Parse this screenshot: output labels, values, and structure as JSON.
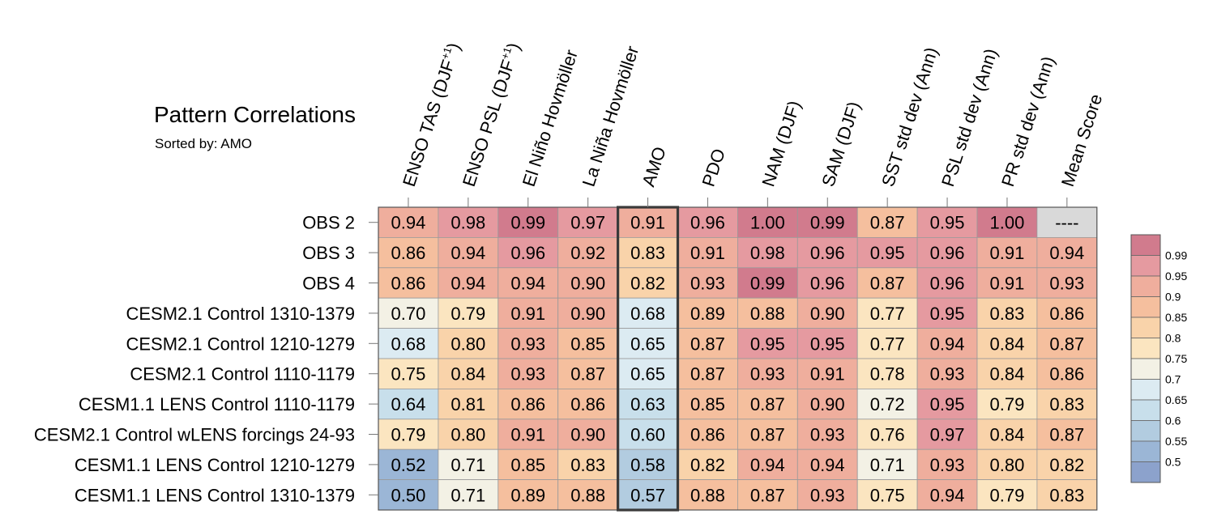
{
  "chart_data": {
    "type": "heatmap",
    "title": "Pattern Correlations",
    "subtitle": "Sorted by: AMO",
    "highlighted_column": "AMO",
    "columns": [
      {
        "base": "ENSO TAS (DJF",
        "sup": "+1",
        "tail": ")"
      },
      {
        "base": "ENSO PSL (DJF",
        "sup": "+1",
        "tail": ")"
      },
      {
        "base": "El Niño Hovmöller"
      },
      {
        "base": "La Niña Hovmöller"
      },
      {
        "base": "AMO"
      },
      {
        "base": "PDO"
      },
      {
        "base": "NAM (DJF)"
      },
      {
        "base": "SAM (DJF)"
      },
      {
        "base": "SST std dev (Ann)"
      },
      {
        "base": "PSL std dev (Ann)"
      },
      {
        "base": "PR std dev (Ann)"
      },
      {
        "base": "Mean Score"
      }
    ],
    "rows": [
      {
        "label": "OBS 2",
        "values": [
          "0.94",
          "0.98",
          "0.99",
          "0.97",
          "0.91",
          "0.96",
          "1.00",
          "0.99",
          "0.87",
          "0.95",
          "1.00",
          "----"
        ]
      },
      {
        "label": "OBS 3",
        "values": [
          "0.86",
          "0.94",
          "0.96",
          "0.92",
          "0.83",
          "0.91",
          "0.98",
          "0.96",
          "0.95",
          "0.96",
          "0.91",
          "0.94"
        ]
      },
      {
        "label": "OBS 4",
        "values": [
          "0.86",
          "0.94",
          "0.94",
          "0.90",
          "0.82",
          "0.93",
          "0.99",
          "0.96",
          "0.87",
          "0.96",
          "0.91",
          "0.93"
        ]
      },
      {
        "label": "CESM2.1 Control 1310-1379",
        "values": [
          "0.70",
          "0.79",
          "0.91",
          "0.90",
          "0.68",
          "0.89",
          "0.88",
          "0.90",
          "0.77",
          "0.95",
          "0.83",
          "0.86"
        ]
      },
      {
        "label": "CESM2.1 Control 1210-1279",
        "values": [
          "0.68",
          "0.80",
          "0.93",
          "0.85",
          "0.65",
          "0.87",
          "0.95",
          "0.95",
          "0.77",
          "0.94",
          "0.84",
          "0.87"
        ]
      },
      {
        "label": "CESM2.1 Control 1110-1179",
        "values": [
          "0.75",
          "0.84",
          "0.93",
          "0.87",
          "0.65",
          "0.87",
          "0.93",
          "0.91",
          "0.78",
          "0.93",
          "0.84",
          "0.86"
        ]
      },
      {
        "label": "CESM1.1 LENS Control 1110-1179",
        "values": [
          "0.64",
          "0.81",
          "0.86",
          "0.86",
          "0.63",
          "0.85",
          "0.87",
          "0.90",
          "0.72",
          "0.95",
          "0.79",
          "0.83"
        ]
      },
      {
        "label": "CESM2.1 Control wLENS forcings 24-93",
        "values": [
          "0.79",
          "0.80",
          "0.91",
          "0.90",
          "0.60",
          "0.86",
          "0.87",
          "0.93",
          "0.76",
          "0.97",
          "0.84",
          "0.87"
        ]
      },
      {
        "label": "CESM1.1 LENS Control 1210-1279",
        "values": [
          "0.52",
          "0.71",
          "0.85",
          "0.83",
          "0.58",
          "0.82",
          "0.94",
          "0.94",
          "0.71",
          "0.93",
          "0.80",
          "0.82"
        ]
      },
      {
        "label": "CESM1.1 LENS Control 1310-1379",
        "values": [
          "0.50",
          "0.71",
          "0.89",
          "0.88",
          "0.57",
          "0.88",
          "0.87",
          "0.93",
          "0.75",
          "0.94",
          "0.79",
          "0.83"
        ]
      }
    ],
    "colorbar": {
      "levels": [
        "0.99",
        "0.95",
        "0.9",
        "0.85",
        "0.8",
        "0.75",
        "0.7",
        "0.65",
        "0.6",
        "0.55",
        "0.5"
      ],
      "thresholds": [
        0.99,
        0.95,
        0.9,
        0.85,
        0.8,
        0.75,
        0.7,
        0.65,
        0.6,
        0.55,
        0.5
      ],
      "colors": [
        "#d17b8d",
        "#e59aa0",
        "#efae9d",
        "#f5bf9e",
        "#f9d3aa",
        "#fbe5c0",
        "#f3f1e5",
        "#dcebf2",
        "#c8dfeb",
        "#b2cce0",
        "#9bb6d6",
        "#8ca2cc"
      ],
      "missing_color": "#d9d9d9"
    }
  }
}
